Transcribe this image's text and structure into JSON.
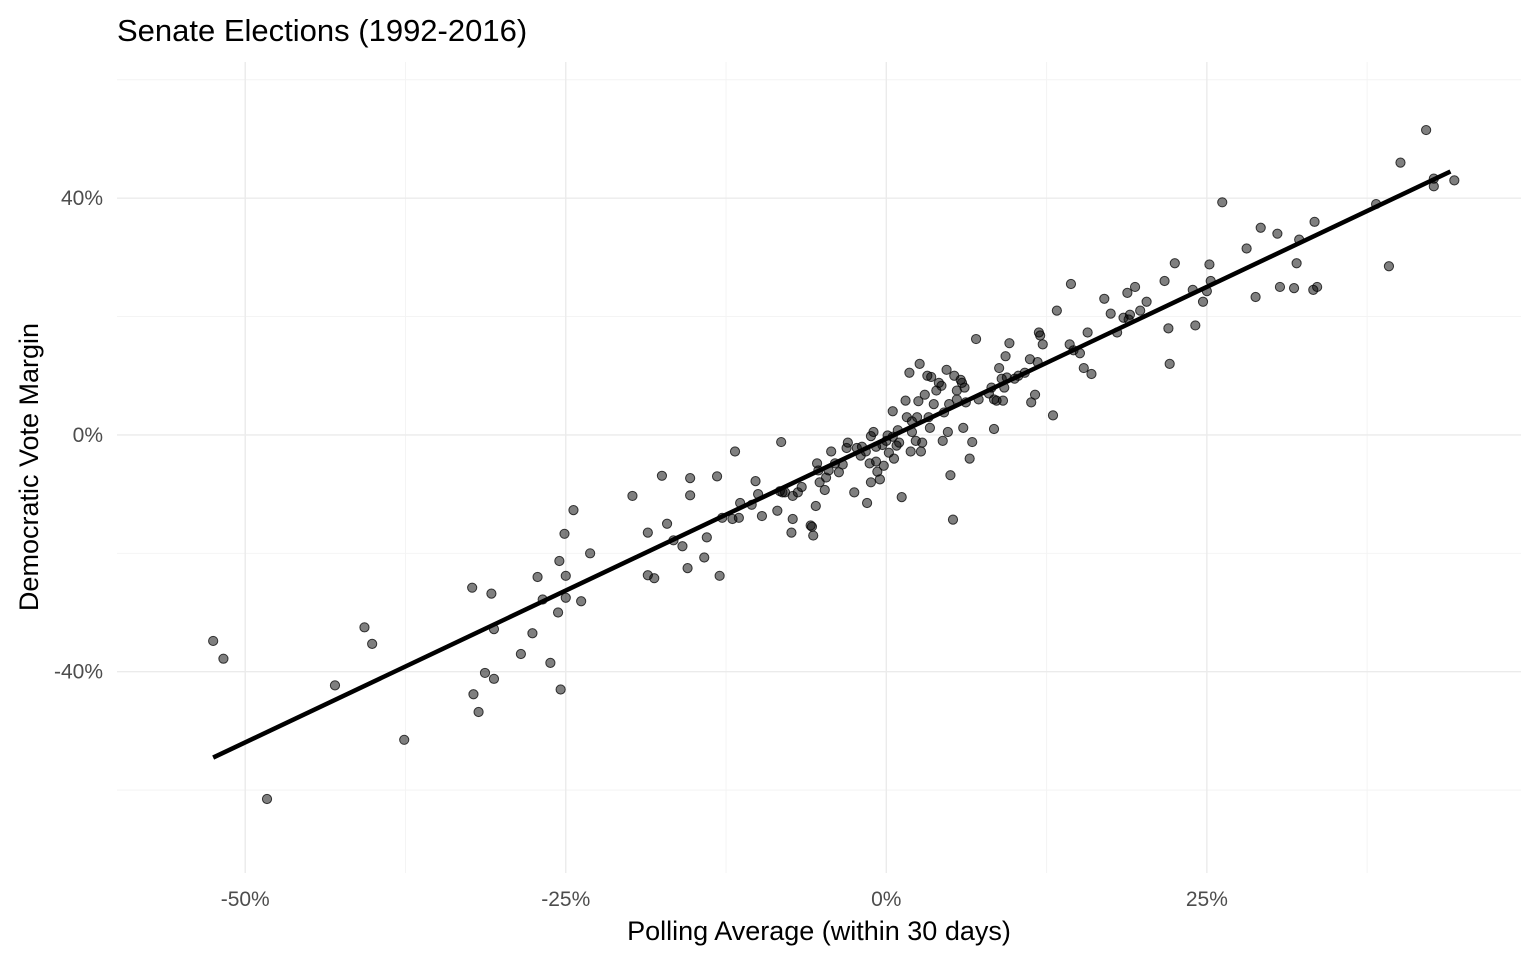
{
  "chart_data": {
    "type": "scatter",
    "title": "Senate Elections (1992-2016)",
    "xlabel": "Polling Average (within 30 days)",
    "ylabel": "Democratic Vote Margin",
    "xlim": [
      -0.6,
      0.495
    ],
    "ylim": [
      -0.74,
      0.63
    ],
    "x_ticks": [
      -0.5,
      -0.25,
      0,
      0.25
    ],
    "x_tick_labels": [
      "-50%",
      "-25%",
      "0%",
      "25%"
    ],
    "y_ticks": [
      0.4,
      0,
      -0.4
    ],
    "y_tick_labels": [
      "40%",
      "0%",
      "-40%"
    ],
    "grid": true,
    "fit_line": {
      "x": [
        -0.525,
        0.44
      ],
      "y": [
        -0.545,
        0.445
      ]
    },
    "points": [
      [
        -0.525,
        -0.348
      ],
      [
        -0.517,
        -0.378
      ],
      [
        -0.483,
        -0.615
      ],
      [
        -0.43,
        -0.423
      ],
      [
        -0.407,
        -0.325
      ],
      [
        -0.401,
        -0.353
      ],
      [
        -0.376,
        -0.515
      ],
      [
        -0.323,
        -0.258
      ],
      [
        -0.322,
        -0.438
      ],
      [
        -0.318,
        -0.468
      ],
      [
        -0.313,
        -0.402
      ],
      [
        -0.308,
        -0.268
      ],
      [
        -0.306,
        -0.328
      ],
      [
        -0.306,
        -0.412
      ],
      [
        -0.285,
        -0.37
      ],
      [
        -0.276,
        -0.335
      ],
      [
        -0.272,
        -0.24
      ],
      [
        -0.268,
        -0.278
      ],
      [
        -0.262,
        -0.385
      ],
      [
        -0.256,
        -0.3
      ],
      [
        -0.255,
        -0.213
      ],
      [
        -0.254,
        -0.43
      ],
      [
        -0.251,
        -0.167
      ],
      [
        -0.25,
        -0.238
      ],
      [
        -0.25,
        -0.275
      ],
      [
        -0.244,
        -0.127
      ],
      [
        -0.238,
        -0.281
      ],
      [
        -0.231,
        -0.2
      ],
      [
        -0.198,
        -0.103
      ],
      [
        -0.186,
        -0.165
      ],
      [
        -0.186,
        -0.237
      ],
      [
        -0.181,
        -0.242
      ],
      [
        -0.175,
        -0.069
      ],
      [
        -0.171,
        -0.15
      ],
      [
        -0.166,
        -0.178
      ],
      [
        -0.159,
        -0.188
      ],
      [
        -0.155,
        -0.225
      ],
      [
        -0.153,
        -0.073
      ],
      [
        -0.153,
        -0.102
      ],
      [
        -0.142,
        -0.207
      ],
      [
        -0.14,
        -0.173
      ],
      [
        -0.132,
        -0.07
      ],
      [
        -0.13,
        -0.238
      ],
      [
        -0.128,
        -0.14
      ],
      [
        -0.12,
        -0.142
      ],
      [
        -0.118,
        -0.028
      ],
      [
        -0.115,
        -0.14
      ],
      [
        -0.114,
        -0.115
      ],
      [
        -0.105,
        -0.118
      ],
      [
        -0.102,
        -0.078
      ],
      [
        -0.1,
        -0.1
      ],
      [
        -0.097,
        -0.137
      ],
      [
        -0.085,
        -0.128
      ],
      [
        -0.083,
        -0.095
      ],
      [
        -0.082,
        -0.012
      ],
      [
        -0.081,
        -0.097
      ],
      [
        -0.079,
        -0.097
      ],
      [
        -0.074,
        -0.165
      ],
      [
        -0.073,
        -0.142
      ],
      [
        -0.073,
        -0.103
      ],
      [
        -0.069,
        -0.097
      ],
      [
        -0.066,
        -0.088
      ],
      [
        -0.059,
        -0.153
      ],
      [
        -0.058,
        -0.155
      ],
      [
        -0.057,
        -0.17
      ],
      [
        -0.055,
        -0.12
      ],
      [
        -0.054,
        -0.048
      ],
      [
        -0.053,
        -0.06
      ],
      [
        -0.052,
        -0.08
      ],
      [
        -0.048,
        -0.093
      ],
      [
        -0.047,
        -0.072
      ],
      [
        -0.045,
        -0.06
      ],
      [
        -0.043,
        -0.028
      ],
      [
        -0.04,
        -0.048
      ],
      [
        -0.037,
        -0.063
      ],
      [
        -0.034,
        -0.05
      ],
      [
        -0.031,
        -0.022
      ],
      [
        -0.03,
        -0.013
      ],
      [
        -0.025,
        -0.097
      ],
      [
        -0.023,
        -0.022
      ],
      [
        -0.02,
        -0.035
      ],
      [
        -0.019,
        -0.02
      ],
      [
        -0.016,
        -0.028
      ],
      [
        -0.015,
        -0.115
      ],
      [
        -0.013,
        -0.048
      ],
      [
        -0.012,
        -0.08
      ],
      [
        -0.012,
        -0.002
      ],
      [
        -0.01,
        0.005
      ],
      [
        -0.008,
        -0.045
      ],
      [
        -0.008,
        -0.02
      ],
      [
        -0.007,
        -0.062
      ],
      [
        -0.005,
        -0.075
      ],
      [
        -0.003,
        -0.017
      ],
      [
        -0.002,
        -0.052
      ],
      [
        0.0,
        -0.01
      ],
      [
        0.001,
        -0.001
      ],
      [
        0.002,
        -0.03
      ],
      [
        0.005,
        -0.003
      ],
      [
        0.005,
        0.04
      ],
      [
        0.006,
        -0.04
      ],
      [
        0.008,
        -0.018
      ],
      [
        0.009,
        0.008
      ],
      [
        0.01,
        -0.013
      ],
      [
        0.012,
        -0.105
      ],
      [
        0.015,
        0.058
      ],
      [
        0.016,
        0.03
      ],
      [
        0.018,
        0.105
      ],
      [
        0.019,
        -0.028
      ],
      [
        0.02,
        0.023
      ],
      [
        0.02,
        0.005
      ],
      [
        0.023,
        -0.01
      ],
      [
        0.024,
        0.03
      ],
      [
        0.025,
        0.057
      ],
      [
        0.026,
        0.12
      ],
      [
        0.027,
        -0.028
      ],
      [
        0.028,
        -0.013
      ],
      [
        0.03,
        0.068
      ],
      [
        0.032,
        0.1
      ],
      [
        0.033,
        0.03
      ],
      [
        0.034,
        0.012
      ],
      [
        0.035,
        0.098
      ],
      [
        0.037,
        0.052
      ],
      [
        0.039,
        0.075
      ],
      [
        0.041,
        0.088
      ],
      [
        0.043,
        0.083
      ],
      [
        0.044,
        -0.01
      ],
      [
        0.045,
        0.038
      ],
      [
        0.047,
        0.11
      ],
      [
        0.048,
        0.005
      ],
      [
        0.049,
        0.052
      ],
      [
        0.05,
        -0.068
      ],
      [
        0.052,
        -0.143
      ],
      [
        0.053,
        0.1
      ],
      [
        0.055,
        0.075
      ],
      [
        0.055,
        0.06
      ],
      [
        0.058,
        0.093
      ],
      [
        0.059,
        0.088
      ],
      [
        0.06,
        0.012
      ],
      [
        0.061,
        0.08
      ],
      [
        0.062,
        0.055
      ],
      [
        0.065,
        -0.04
      ],
      [
        0.067,
        -0.012
      ],
      [
        0.07,
        0.162
      ],
      [
        0.072,
        0.06
      ],
      [
        0.08,
        0.07
      ],
      [
        0.082,
        0.08
      ],
      [
        0.084,
        0.06
      ],
      [
        0.084,
        0.01
      ],
      [
        0.086,
        0.058
      ],
      [
        0.088,
        0.113
      ],
      [
        0.09,
        0.095
      ],
      [
        0.091,
        0.058
      ],
      [
        0.092,
        0.08
      ],
      [
        0.093,
        0.133
      ],
      [
        0.094,
        0.097
      ],
      [
        0.096,
        0.155
      ],
      [
        0.1,
        0.095
      ],
      [
        0.103,
        0.1
      ],
      [
        0.108,
        0.105
      ],
      [
        0.112,
        0.128
      ],
      [
        0.113,
        0.055
      ],
      [
        0.116,
        0.068
      ],
      [
        0.118,
        0.123
      ],
      [
        0.119,
        0.173
      ],
      [
        0.12,
        0.168
      ],
      [
        0.122,
        0.153
      ],
      [
        0.13,
        0.033
      ],
      [
        0.133,
        0.21
      ],
      [
        0.143,
        0.153
      ],
      [
        0.144,
        0.255
      ],
      [
        0.146,
        0.143
      ],
      [
        0.151,
        0.138
      ],
      [
        0.154,
        0.113
      ],
      [
        0.157,
        0.173
      ],
      [
        0.16,
        0.103
      ],
      [
        0.17,
        0.23
      ],
      [
        0.175,
        0.205
      ],
      [
        0.18,
        0.173
      ],
      [
        0.185,
        0.198
      ],
      [
        0.188,
        0.24
      ],
      [
        0.189,
        0.195
      ],
      [
        0.19,
        0.203
      ],
      [
        0.194,
        0.25
      ],
      [
        0.198,
        0.21
      ],
      [
        0.203,
        0.225
      ],
      [
        0.217,
        0.26
      ],
      [
        0.22,
        0.18
      ],
      [
        0.221,
        0.12
      ],
      [
        0.225,
        0.29
      ],
      [
        0.239,
        0.245
      ],
      [
        0.241,
        0.185
      ],
      [
        0.247,
        0.225
      ],
      [
        0.25,
        0.243
      ],
      [
        0.252,
        0.288
      ],
      [
        0.253,
        0.26
      ],
      [
        0.262,
        0.393
      ],
      [
        0.281,
        0.315
      ],
      [
        0.288,
        0.233
      ],
      [
        0.292,
        0.35
      ],
      [
        0.305,
        0.34
      ],
      [
        0.307,
        0.25
      ],
      [
        0.318,
        0.248
      ],
      [
        0.32,
        0.29
      ],
      [
        0.322,
        0.33
      ],
      [
        0.333,
        0.245
      ],
      [
        0.334,
        0.36
      ],
      [
        0.336,
        0.25
      ],
      [
        0.382,
        0.39
      ],
      [
        0.392,
        0.285
      ],
      [
        0.401,
        0.46
      ],
      [
        0.421,
        0.515
      ],
      [
        0.427,
        0.42
      ],
      [
        0.427,
        0.433
      ],
      [
        0.443,
        0.43
      ]
    ]
  }
}
